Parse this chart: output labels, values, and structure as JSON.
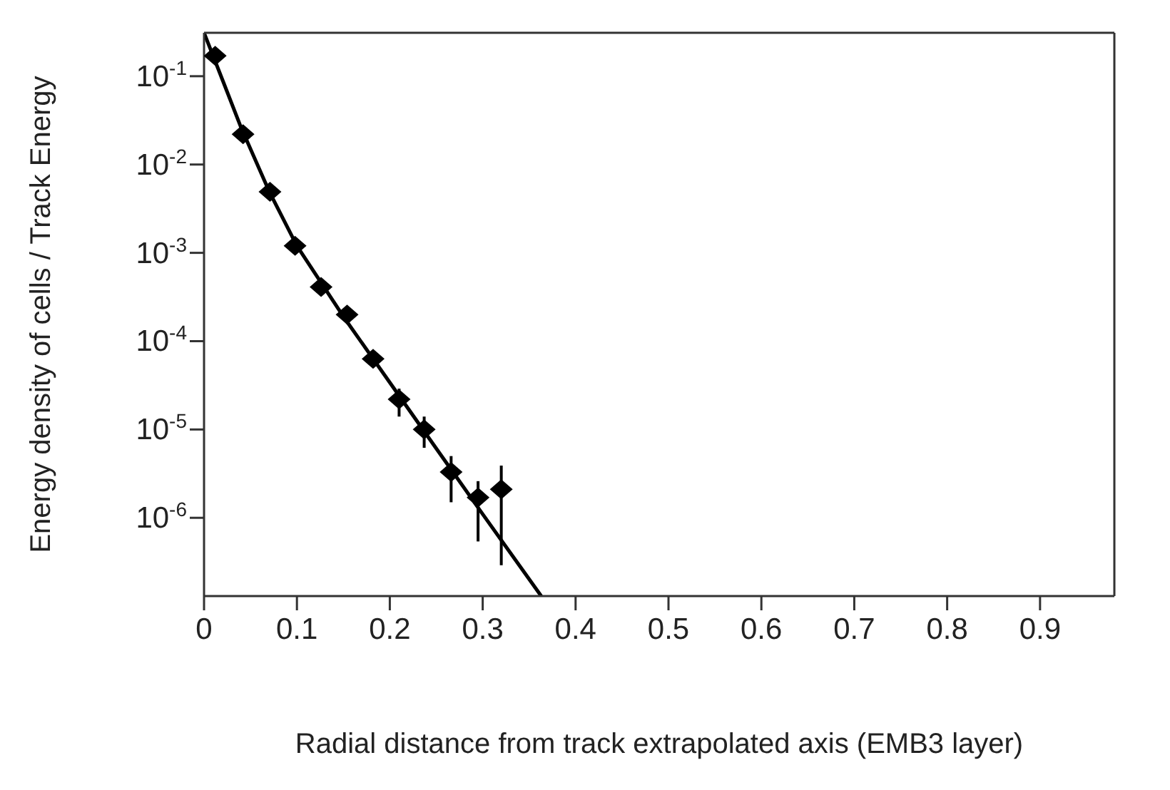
{
  "chart_data": {
    "type": "scatter",
    "xlabel": "Radial distance from track extrapolated axis (EMB3 layer)",
    "ylabel": "Energy density of cells / Track Energy",
    "log": "y",
    "marker": "diamond",
    "grid": false,
    "legend": false,
    "xlim": [
      0,
      0.98
    ],
    "xticks": [
      0,
      0.1,
      0.2,
      0.3,
      0.4,
      0.5,
      0.6,
      0.7,
      0.8,
      0.9
    ],
    "ylim": [
      1.3e-07,
      0.31
    ],
    "yticks": [
      {
        "value": 0.1,
        "label": "10$^{-1}$"
      },
      {
        "value": 0.01,
        "label": "10$^{-2}$"
      },
      {
        "value": 0.001,
        "label": "10$^{-3}$"
      },
      {
        "value": 0.0001,
        "label": "10$^{-4}$"
      },
      {
        "value": 1e-05,
        "label": "10$^{-5}$"
      },
      {
        "value": 1e-06,
        "label": "10$^{-6}$"
      }
    ],
    "series": [
      {
        "color": "#000000",
        "x": [
          0.012,
          0.042,
          0.071,
          0.098,
          0.126,
          0.154,
          0.182,
          0.21,
          0.237,
          0.266,
          0.295,
          0.32
        ],
        "values": [
          0.17,
          0.022,
          0.0049,
          0.0012,
          0.00041,
          0.0002,
          6.3e-05,
          2.2e-05,
          1e-05,
          3.3e-06,
          1.7e-06,
          2.1e-06
        ],
        "errors": [
          null,
          null,
          null,
          null,
          null,
          null,
          null,
          [
            1.4e-05,
            2.9e-05
          ],
          [
            6.2e-06,
            1.4e-05
          ],
          [
            1.5e-06,
            5e-06
          ],
          [
            5.4e-07,
            2.6e-06
          ],
          [
            2.9e-07,
            3.9e-06
          ]
        ]
      },
      {
        "type": "line",
        "color": "#000000",
        "marker": "none",
        "line_style": "solid",
        "x": [
          0,
          0.02,
          0.04,
          0.07,
          0.1,
          0.15,
          0.2,
          0.25,
          0.3,
          0.363
        ],
        "values": [
          0.31,
          0.09,
          0.026,
          0.005,
          0.0012,
          0.00019,
          3.4e-05,
          6.1e-06,
          1.1e-06,
          1.3e-07
        ]
      }
    ]
  }
}
